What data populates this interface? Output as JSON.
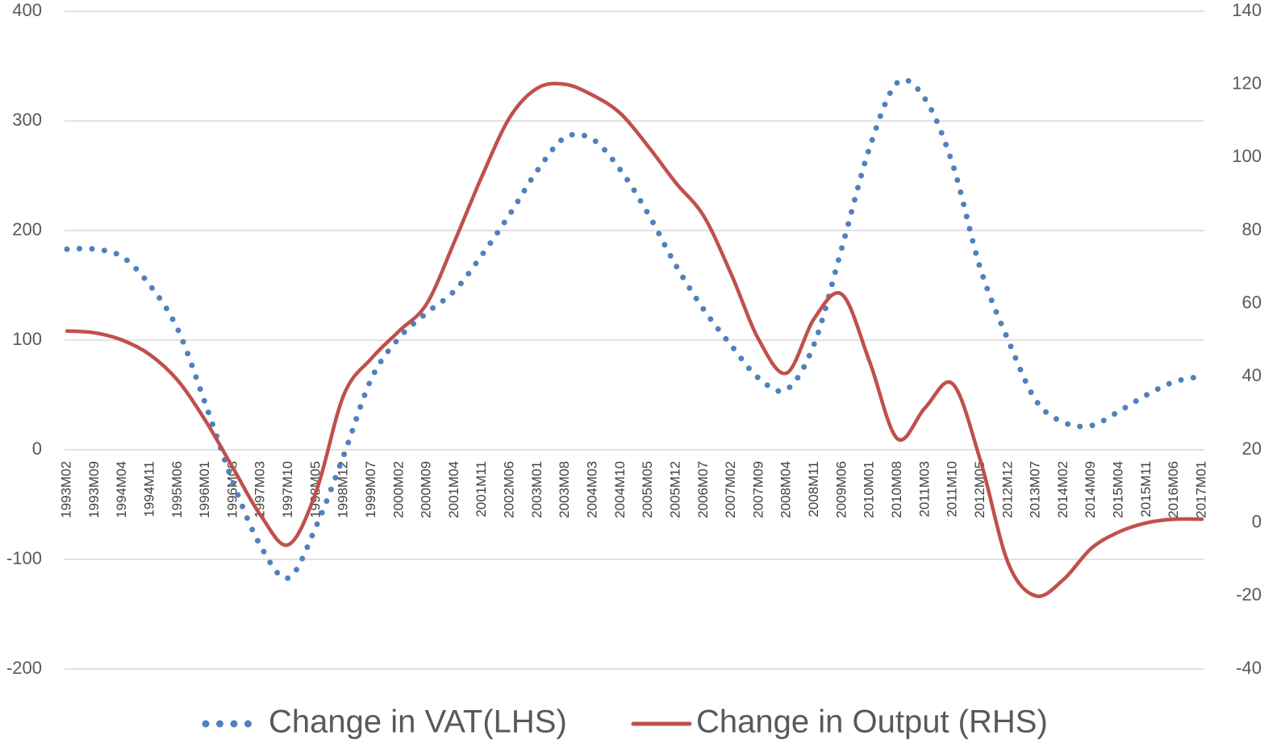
{
  "chart_data": {
    "type": "line",
    "categories": [
      "1993M02",
      "1993M09",
      "1994M04",
      "1994M11",
      "1995M06",
      "1996M01",
      "1996M08",
      "1997M03",
      "1997M10",
      "1998M05",
      "1998M12",
      "1999M07",
      "2000M02",
      "2000M09",
      "2001M04",
      "2001M11",
      "2002M06",
      "2003M01",
      "2003M08",
      "2004M03",
      "2004M10",
      "2005M05",
      "2005M12",
      "2006M07",
      "2007M02",
      "2007M09",
      "2008M04",
      "2008M11",
      "2009M06",
      "2010M01",
      "2010M08",
      "2011M03",
      "2011M10",
      "2012M05",
      "2012M12",
      "2013M07",
      "2014M02",
      "2014M09",
      "2015M04",
      "2015M11",
      "2016M06",
      "2017M01"
    ],
    "series": [
      {
        "name": "Change in VAT(LHS)",
        "color": "#4f81bd",
        "style": "dotted",
        "axis": "y",
        "values": [
          183,
          183,
          176,
          150,
          110,
          42,
          -30,
          -88,
          -117,
          -70,
          -5,
          65,
          102,
          125,
          145,
          178,
          215,
          255,
          285,
          283,
          255,
          215,
          168,
          128,
          95,
          65,
          55,
          97,
          185,
          276,
          335,
          320,
          260,
          165,
          100,
          45,
          25,
          22,
          35,
          50,
          62,
          67
        ]
      },
      {
        "name": "Change in Output (RHS)",
        "color": "#c0504d",
        "style": "solid",
        "axis": "y2",
        "values": [
          52.5,
          52,
          50,
          46,
          39,
          28,
          15,
          2,
          -6,
          8.5,
          35,
          45,
          52.5,
          60,
          77,
          95,
          111,
          119,
          120,
          117,
          112,
          103,
          93,
          84,
          68,
          50,
          41,
          56,
          62.5,
          44,
          23,
          31.5,
          38,
          17,
          -11,
          -20,
          -15.5,
          -7,
          -2.5,
          0,
          1,
          1
        ]
      }
    ],
    "ylim": [
      -200,
      400
    ],
    "yticks": [
      -200,
      -100,
      0,
      100,
      200,
      300,
      400
    ],
    "y2lim": [
      -40,
      140
    ],
    "y2ticks": [
      -40,
      -20,
      0,
      20,
      40,
      60,
      80,
      100,
      120,
      140
    ],
    "grid": true,
    "legend": "bottom"
  }
}
